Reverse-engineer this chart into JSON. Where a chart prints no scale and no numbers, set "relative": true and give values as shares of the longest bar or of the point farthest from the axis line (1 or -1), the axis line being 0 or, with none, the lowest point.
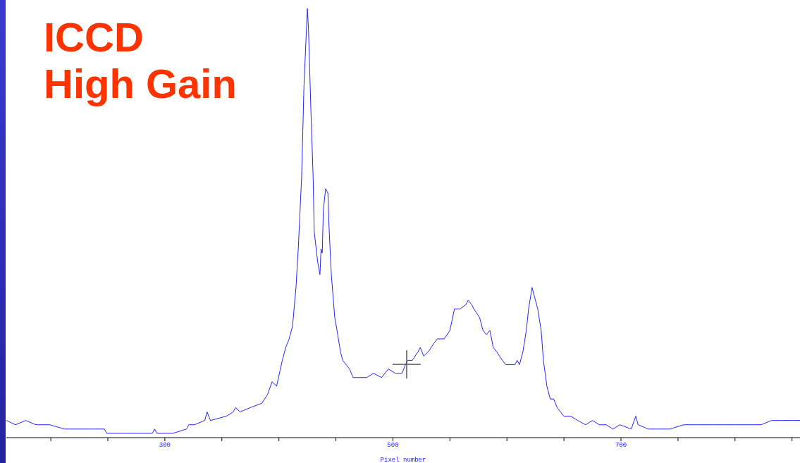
{
  "chart_data": {
    "type": "line",
    "title": "ICCD\nHigh Gain",
    "xlabel": "Pixel number",
    "relative": true,
    "color": "#2424ff",
    "xlim": [
      161,
      857
    ],
    "xticks": [
      {
        "value": 200,
        "label": null
      },
      {
        "value": 250,
        "label": null
      },
      300,
      {
        "value": 350,
        "label": null
      },
      {
        "value": 400,
        "label": null
      },
      {
        "value": 450,
        "label": null
      },
      500,
      {
        "value": 550,
        "label": null
      },
      {
        "value": 600,
        "label": null
      },
      {
        "value": 650,
        "label": null
      },
      700,
      {
        "value": 750,
        "label": null
      },
      {
        "value": 800,
        "label": null
      },
      {
        "value": 850,
        "label": null
      }
    ],
    "x": [
      161,
      169,
      178,
      187,
      199,
      212,
      224,
      236,
      247,
      249,
      261,
      273,
      289,
      291,
      293,
      300,
      307,
      319,
      321,
      326,
      335,
      337,
      340,
      354,
      360,
      362,
      366,
      375,
      385,
      390,
      394,
      398,
      403,
      406,
      409,
      412,
      415,
      417,
      420,
      422,
      425,
      426,
      428,
      430,
      431,
      434,
      436,
      437,
      438,
      439,
      441,
      443,
      444,
      446,
      449,
      451,
      454,
      456,
      459,
      462,
      465,
      471,
      477,
      483,
      490,
      496,
      502,
      508,
      511,
      513,
      517,
      522,
      524,
      527,
      531,
      536,
      539,
      542,
      545,
      550,
      554,
      559,
      564,
      566,
      569,
      571,
      576,
      579,
      582,
      585,
      588,
      591,
      596,
      599,
      604,
      607,
      609,
      611,
      614,
      617,
      619,
      622,
      624,
      627,
      630,
      632,
      635,
      638,
      641,
      644,
      650,
      656,
      662,
      669,
      675,
      681,
      687,
      693,
      699,
      709,
      713,
      715,
      724,
      733,
      743,
      755,
      767,
      780,
      792,
      801,
      810,
      823,
      832,
      841,
      851,
      857
    ],
    "values": [
      0.04,
      0.03,
      0.04,
      0.03,
      0.03,
      0.02,
      0.02,
      0.02,
      0.02,
      0.01,
      0.01,
      0.01,
      0.01,
      0.02,
      0.01,
      0.01,
      0.01,
      0.02,
      0.03,
      0.03,
      0.04,
      0.06,
      0.04,
      0.05,
      0.06,
      0.07,
      0.06,
      0.07,
      0.08,
      0.1,
      0.13,
      0.12,
      0.18,
      0.21,
      0.23,
      0.26,
      0.35,
      0.44,
      0.61,
      0.82,
      1,
      0.95,
      0.77,
      0.61,
      0.48,
      0.41,
      0.38,
      0.44,
      0.43,
      0.53,
      0.58,
      0.57,
      0.49,
      0.38,
      0.28,
      0.25,
      0.2,
      0.18,
      0.17,
      0.16,
      0.14,
      0.14,
      0.14,
      0.15,
      0.14,
      0.16,
      0.15,
      0.15,
      0.17,
      0.18,
      0.18,
      0.2,
      0.21,
      0.19,
      0.2,
      0.22,
      0.23,
      0.23,
      0.23,
      0.25,
      0.3,
      0.3,
      0.31,
      0.32,
      0.31,
      0.3,
      0.28,
      0.25,
      0.24,
      0.25,
      0.21,
      0.2,
      0.18,
      0.17,
      0.17,
      0.17,
      0.18,
      0.17,
      0.2,
      0.25,
      0.3,
      0.35,
      0.33,
      0.3,
      0.25,
      0.18,
      0.12,
      0.09,
      0.09,
      0.07,
      0.05,
      0.05,
      0.04,
      0.03,
      0.04,
      0.03,
      0.03,
      0.02,
      0.03,
      0.02,
      0.05,
      0.03,
      0.02,
      0.02,
      0.02,
      0.03,
      0.03,
      0.03,
      0.03,
      0.03,
      0.03,
      0.03,
      0.04,
      0.04,
      0.04,
      0.04
    ]
  }
}
